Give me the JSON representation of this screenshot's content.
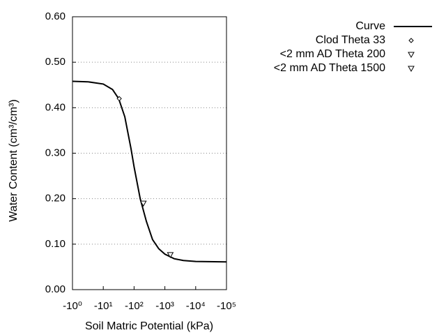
{
  "chart_data": {
    "type": "line",
    "xlabel": "Soil Matric Potential (kPa)",
    "ylabel": "Water Content (cm³/cm³)",
    "xscale": "log",
    "xlim": [
      -1,
      -100000
    ],
    "ylim": [
      0,
      0.6
    ],
    "xticks": [
      {
        "value": -1,
        "label": "-10⁰"
      },
      {
        "value": -10,
        "label": "-10¹"
      },
      {
        "value": -100,
        "label": "-10²"
      },
      {
        "value": -1000,
        "label": "-10³"
      },
      {
        "value": -10000,
        "label": "-10⁴"
      },
      {
        "value": -100000,
        "label": "-10⁵"
      }
    ],
    "yticks": [
      {
        "value": 0,
        "label": "0.00"
      },
      {
        "value": 0.1,
        "label": "0.10"
      },
      {
        "value": 0.2,
        "label": "0.20"
      },
      {
        "value": 0.3,
        "label": "0.30"
      },
      {
        "value": 0.4,
        "label": "0.40"
      },
      {
        "value": 0.5,
        "label": "0.50"
      },
      {
        "value": 0.6,
        "label": "0.60"
      }
    ],
    "grid": true,
    "legend": "upper right",
    "series": [
      {
        "name": "Curve",
        "color": "#000000",
        "style": "line",
        "x": [
          -1,
          -3.16,
          -10,
          -20,
          -31.6,
          -50,
          -79.4,
          -100,
          -158,
          -251,
          -398,
          -631,
          -1000,
          -2000,
          -3981,
          -10000,
          -100000
        ],
        "values": [
          0.458,
          0.457,
          0.452,
          0.44,
          0.42,
          0.38,
          0.31,
          0.27,
          0.2,
          0.15,
          0.11,
          0.09,
          0.078,
          0.068,
          0.064,
          0.062,
          0.061
        ]
      },
      {
        "name": "Clod Theta 33",
        "color": "#000000",
        "style": "marker",
        "marker": "diamond",
        "x": [
          -33
        ],
        "values": [
          0.42
        ]
      },
      {
        "name": "<2 mm AD Theta 200",
        "color": "#000000",
        "style": "marker",
        "marker": "triangle-down",
        "x": [
          -200
        ],
        "values": [
          0.19
        ]
      },
      {
        "name": "<2 mm AD Theta 1500",
        "color": "#000000",
        "style": "marker",
        "marker": "triangle-down",
        "x": [
          -1500
        ],
        "values": [
          0.077
        ]
      }
    ]
  }
}
